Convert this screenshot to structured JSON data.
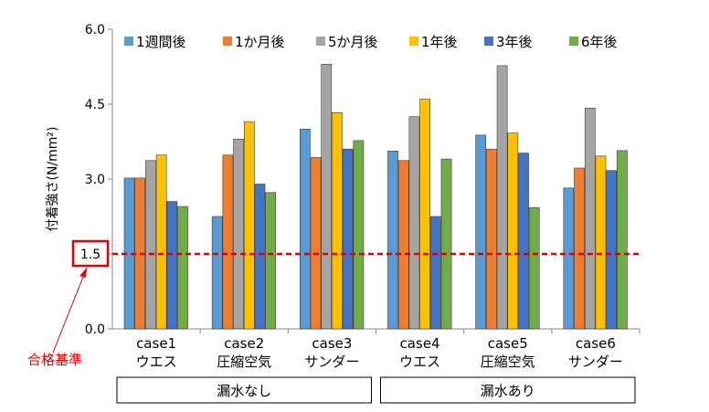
{
  "chart_data": {
    "type": "bar",
    "title": "",
    "xlabel": "",
    "ylabel": "付着強さ(N/mm²)",
    "ylim": [
      0,
      6.0
    ],
    "yticks": [
      "0.0",
      "1.5",
      "3.0",
      "4.5",
      "6.0"
    ],
    "grid": false,
    "legend_position": "top",
    "categories": [
      {
        "line1": "case1",
        "line2": "ウエス"
      },
      {
        "line1": "case2",
        "line2": "圧縮空気"
      },
      {
        "line1": "case3",
        "line2": "サンダー"
      },
      {
        "line1": "case4",
        "line2": "ウエス"
      },
      {
        "line1": "case5",
        "line2": "圧縮空気"
      },
      {
        "line1": "case6",
        "line2": "サンダー"
      }
    ],
    "series": [
      {
        "name": "1週間後",
        "color": "#5B9BD5",
        "values": [
          3.02,
          2.25,
          4.0,
          3.56,
          3.88,
          2.82
        ]
      },
      {
        "name": "1か月後",
        "color": "#ED7D31",
        "values": [
          3.02,
          3.48,
          3.43,
          3.37,
          3.6,
          3.22
        ]
      },
      {
        "name": "5か月後",
        "color": "#A5A5A5",
        "values": [
          3.37,
          3.8,
          5.3,
          4.25,
          5.27,
          4.42
        ]
      },
      {
        "name": "1年後",
        "color": "#FFC000",
        "values": [
          3.48,
          4.15,
          4.33,
          4.6,
          3.92,
          3.46
        ]
      },
      {
        "name": "3年後",
        "color": "#4472C4",
        "values": [
          2.55,
          2.9,
          3.6,
          2.25,
          3.52,
          3.17
        ]
      },
      {
        "name": "6年後",
        "color": "#70AD47",
        "values": [
          2.45,
          2.73,
          3.77,
          3.4,
          2.43,
          3.57
        ]
      }
    ],
    "groups": [
      {
        "label": "漏水なし",
        "span": [
          0,
          2
        ]
      },
      {
        "label": "漏水あり",
        "span": [
          3,
          5
        ]
      }
    ],
    "threshold": {
      "value": 1.5,
      "label": "1.5",
      "annotation": "合格基準",
      "color": "#e00000"
    }
  }
}
